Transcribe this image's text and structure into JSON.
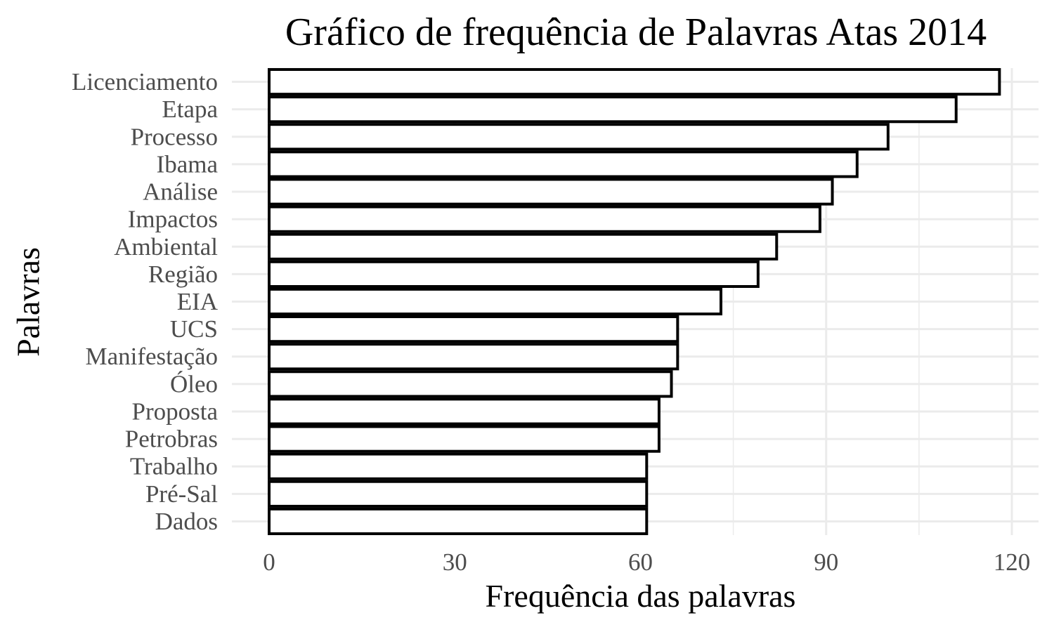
{
  "chart_data": {
    "type": "bar",
    "orientation": "horizontal",
    "title": "Gráfico de frequência de Palavras Atas 2014",
    "xlabel": "Frequência das palavras",
    "ylabel": "Palavras",
    "categories": [
      "Licenciamento",
      "Etapa",
      "Processo",
      "Ibama",
      "Análise",
      "Impactos",
      "Ambiental",
      "Região",
      "EIA",
      "UCS",
      "Manifestação",
      "Óleo",
      "Proposta",
      "Petrobras",
      "Trabalho",
      "Pré-Sal",
      "Dados"
    ],
    "values": [
      118,
      111,
      100,
      95,
      91,
      89,
      82,
      79,
      73,
      66,
      66,
      65,
      63,
      63,
      61,
      61,
      61
    ],
    "xlim": [
      0,
      124
    ],
    "xticks": [
      0,
      30,
      60,
      90,
      120
    ],
    "xtick_labels": [
      "0",
      "30",
      "60",
      "90",
      "120"
    ],
    "grid": true,
    "bar_fill": "#ffffff",
    "bar_stroke": "#000000",
    "grid_color": "#ebebeb"
  }
}
